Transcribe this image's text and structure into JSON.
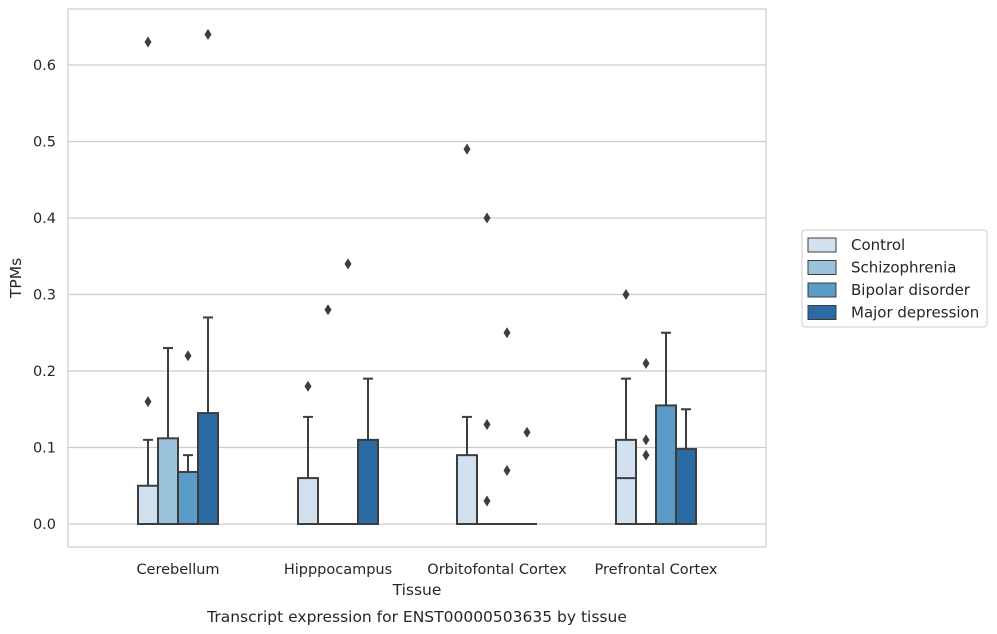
{
  "chart_data": {
    "type": "box",
    "caption": "Transcript expression for ENST00000503635 by tissue",
    "xlabel": "Tissue",
    "ylabel": "TPMs",
    "ylim": [
      -0.03,
      0.67
    ],
    "yticks": [
      0.0,
      0.1,
      0.2,
      0.3,
      0.4,
      0.5,
      0.6
    ],
    "ytick_labels": [
      "0.0",
      "0.1",
      "0.2",
      "0.3",
      "0.4",
      "0.5",
      "0.6"
    ],
    "grid": "horizontal",
    "legend_position": "right",
    "categories": [
      "Cerebellum",
      "Hipppocampus",
      "Orbitofontal Cortex",
      "Prefrontal Cortex"
    ],
    "series": [
      {
        "name": "Control",
        "color": "#d2e1f0",
        "boxes": [
          {
            "q1": 0.0,
            "median": 0.0,
            "q3": 0.05,
            "whisker_low": 0.0,
            "whisker_high": 0.11,
            "outliers": [
              0.16,
              0.63
            ]
          },
          {
            "q1": 0.0,
            "median": 0.0,
            "q3": 0.06,
            "whisker_low": 0.0,
            "whisker_high": 0.14,
            "outliers": [
              0.18
            ]
          },
          {
            "q1": 0.0,
            "median": 0.0,
            "q3": 0.09,
            "whisker_low": 0.0,
            "whisker_high": 0.14,
            "outliers": [
              0.49
            ]
          },
          {
            "q1": 0.0,
            "median": 0.06,
            "q3": 0.11,
            "whisker_low": 0.0,
            "whisker_high": 0.19,
            "outliers": [
              0.3
            ]
          }
        ]
      },
      {
        "name": "Schizophrenia",
        "color": "#9bc3db",
        "boxes": [
          {
            "q1": 0.0,
            "median": 0.0,
            "q3": 0.112,
            "whisker_low": 0.0,
            "whisker_high": 0.23,
            "outliers": []
          },
          {
            "q1": 0.0,
            "median": 0.0,
            "q3": 0.0,
            "whisker_low": 0.0,
            "whisker_high": 0.0,
            "outliers": [
              0.28
            ]
          },
          {
            "q1": 0.0,
            "median": 0.0,
            "q3": 0.0,
            "whisker_low": 0.0,
            "whisker_high": 0.0,
            "outliers": [
              0.03,
              0.13,
              0.4
            ]
          },
          {
            "q1": 0.0,
            "median": 0.0,
            "q3": 0.0,
            "whisker_low": 0.0,
            "whisker_high": 0.0,
            "outliers": [
              0.09,
              0.11,
              0.21
            ]
          }
        ]
      },
      {
        "name": "Bipolar disorder",
        "color": "#5b9bc8",
        "boxes": [
          {
            "q1": 0.0,
            "median": 0.0,
            "q3": 0.068,
            "whisker_low": 0.0,
            "whisker_high": 0.09,
            "outliers": [
              0.22
            ]
          },
          {
            "q1": 0.0,
            "median": 0.0,
            "q3": 0.0,
            "whisker_low": 0.0,
            "whisker_high": 0.0,
            "outliers": [
              0.34
            ]
          },
          {
            "q1": 0.0,
            "median": 0.0,
            "q3": 0.0,
            "whisker_low": 0.0,
            "whisker_high": 0.0,
            "outliers": [
              0.07,
              0.25
            ]
          },
          {
            "q1": 0.0,
            "median": 0.0,
            "q3": 0.155,
            "whisker_low": 0.0,
            "whisker_high": 0.25,
            "outliers": []
          }
        ]
      },
      {
        "name": "Major depression",
        "color": "#2c6aa3",
        "boxes": [
          {
            "q1": 0.0,
            "median": 0.0,
            "q3": 0.145,
            "whisker_low": 0.0,
            "whisker_high": 0.27,
            "outliers": [
              0.64
            ]
          },
          {
            "q1": 0.0,
            "median": 0.0,
            "q3": 0.11,
            "whisker_low": 0.0,
            "whisker_high": 0.19,
            "outliers": []
          },
          {
            "q1": 0.0,
            "median": 0.0,
            "q3": 0.0,
            "whisker_low": 0.0,
            "whisker_high": 0.0,
            "outliers": [
              0.12
            ]
          },
          {
            "q1": 0.0,
            "median": 0.0,
            "q3": 0.098,
            "whisker_low": 0.0,
            "whisker_high": 0.15,
            "outliers": []
          }
        ]
      }
    ]
  }
}
